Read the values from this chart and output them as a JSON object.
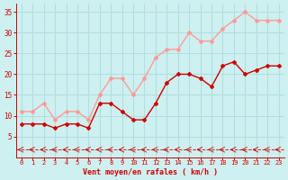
{
  "x": [
    0,
    1,
    2,
    3,
    4,
    5,
    6,
    7,
    8,
    9,
    10,
    11,
    12,
    13,
    14,
    15,
    16,
    17,
    18,
    19,
    20,
    21,
    22,
    23
  ],
  "wind_mean": [
    8,
    8,
    8,
    7,
    8,
    8,
    7,
    13,
    13,
    11,
    9,
    9,
    13,
    18,
    20,
    20,
    19,
    17,
    22,
    23,
    20,
    21,
    22,
    22
  ],
  "wind_gust": [
    11,
    11,
    13,
    9,
    11,
    11,
    9,
    15,
    19,
    19,
    15,
    19,
    24,
    26,
    26,
    30,
    28,
    28,
    31,
    33,
    35,
    33,
    33,
    33
  ],
  "bg_color": "#cff0f0",
  "grid_color": "#b0dede",
  "mean_color": "#cc0000",
  "gust_color": "#ff9999",
  "dir_color": "#cc0000",
  "xlabel": "Vent moyen/en rafales ( km/h )",
  "xlabel_color": "#cc0000",
  "tick_color": "#cc0000",
  "ylim": [
    0,
    37
  ],
  "yticks": [
    5,
    10,
    15,
    20,
    25,
    30,
    35
  ],
  "xlim": [
    -0.5,
    23.5
  ]
}
